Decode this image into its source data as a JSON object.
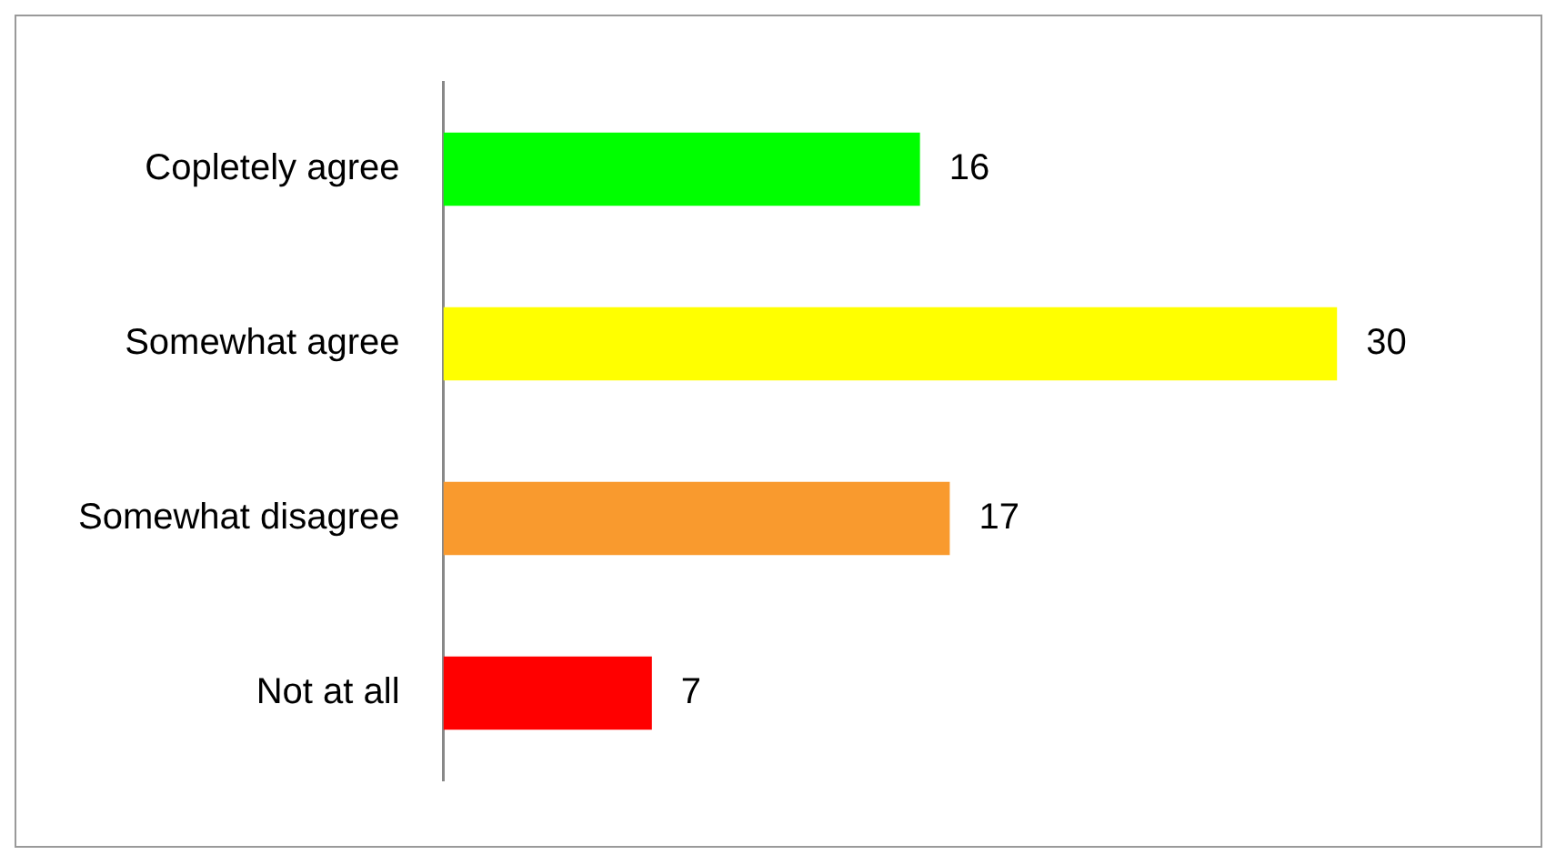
{
  "chart_data": {
    "type": "bar",
    "orientation": "horizontal",
    "categories": [
      "Copletely agree",
      "Somewhat agree",
      "Somewhat disagree",
      "Not at all"
    ],
    "values": [
      16,
      30,
      17,
      7
    ],
    "colors": [
      "#00ff00",
      "#ffff00",
      "#f99a2e",
      "#ff0000"
    ],
    "data_labels": true,
    "legend": false
  }
}
